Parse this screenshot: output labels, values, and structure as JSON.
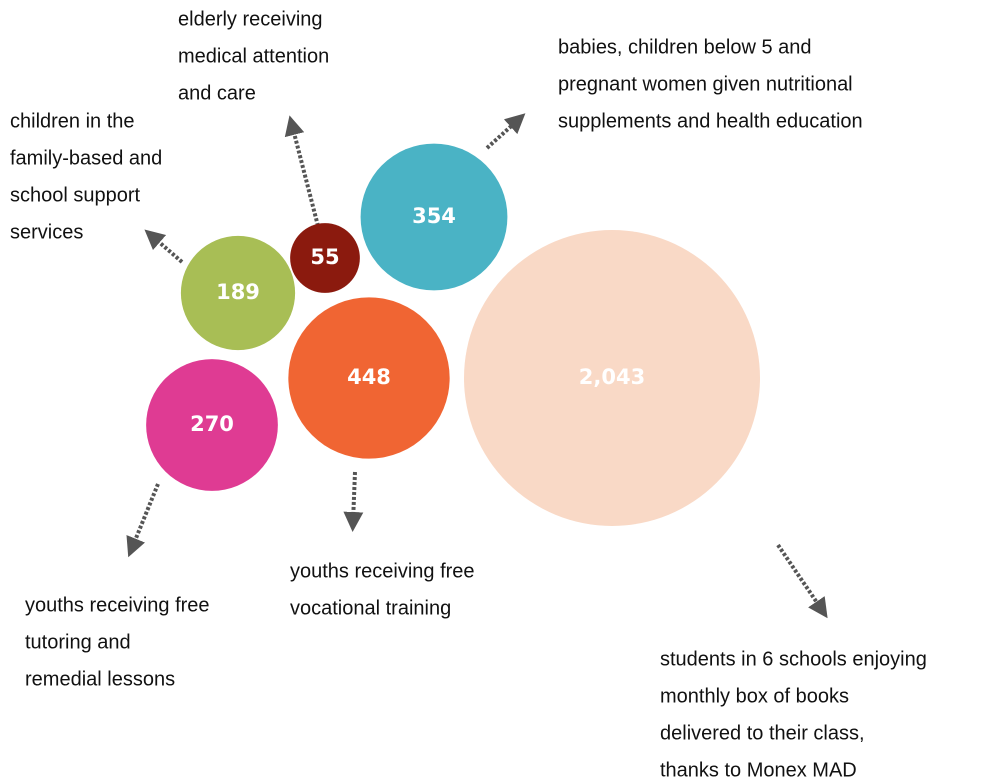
{
  "chart_data": {
    "type": "bubble",
    "categories": [
      [
        "children in the",
        "family-based and",
        "school support",
        "services"
      ],
      [
        "elderly receiving",
        "medical attention",
        "and care"
      ],
      [
        "babies, children below 5 and",
        "pregnant women given nutritional",
        "supplements and health education"
      ],
      [
        "youths receiving free",
        "tutoring and",
        "remedial lessons"
      ],
      [
        "youths receiving free",
        "vocational training"
      ],
      [
        "students in 6 schools enjoying",
        "monthly box of books",
        "delivered to their class,",
        "thanks to Monex MAD"
      ]
    ],
    "values": [
      189,
      55,
      354,
      270,
      448,
      2043
    ],
    "value_labels": [
      "189",
      "55",
      "354",
      "270",
      "448",
      "2,043"
    ],
    "colors": [
      "#a8be55",
      "#8b1a0e",
      "#4ab3c5",
      "#df3b93",
      "#f06533",
      "#f9d9c6"
    ]
  }
}
